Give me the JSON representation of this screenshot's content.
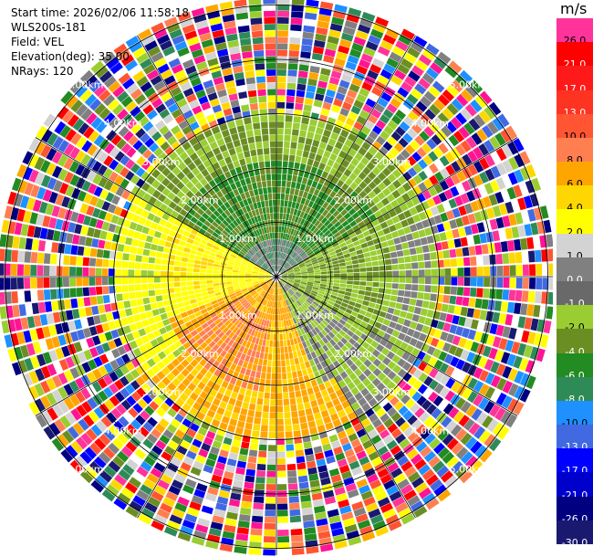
{
  "header": {
    "start_time": "Start time: 2026/02/06 11:58:18",
    "instrument": "WLS200s-181",
    "field": "Field: VEL",
    "elevation": "Elevation(deg): 35.00",
    "nrays": "NRays: 120"
  },
  "colorbar": {
    "unit": "m/s",
    "levels": [
      {
        "label": "26.0",
        "color": "#ff3399"
      },
      {
        "label": "21.0",
        "color": "#ff0000"
      },
      {
        "label": "17.0",
        "color": "#ff1a1a"
      },
      {
        "label": "13.0",
        "color": "#ff3322"
      },
      {
        "label": "10.0",
        "color": "#ff5533"
      },
      {
        "label": "8.0",
        "color": "#ff7f50"
      },
      {
        "label": "6.0",
        "color": "#ffa500"
      },
      {
        "label": "4.0",
        "color": "#ffd700"
      },
      {
        "label": "2.0",
        "color": "#ffff00"
      },
      {
        "label": "1.0",
        "color": "#d3d3d3"
      },
      {
        "label": "0.0",
        "color": "#808080"
      },
      {
        "label": "-1.0",
        "color": "#696969"
      },
      {
        "label": "-2.0",
        "color": "#9acd32"
      },
      {
        "label": "-4.0",
        "color": "#6b8e23"
      },
      {
        "label": "-6.0",
        "color": "#228b22"
      },
      {
        "label": "-8.0",
        "color": "#2e8b57"
      },
      {
        "label": "-10.0",
        "color": "#1e90ff"
      },
      {
        "label": "-13.0",
        "color": "#4169e1"
      },
      {
        "label": "-17.0",
        "color": "#0000ff"
      },
      {
        "label": "-21.0",
        "color": "#0000cd"
      },
      {
        "label": "-26.0",
        "color": "#000080"
      },
      {
        "label": "-30.0",
        "color": "#191970"
      }
    ]
  },
  "ppi": {
    "range_rings": [
      "1.00km",
      "2.00km",
      "3.00km",
      "4.00km",
      "5.00km"
    ],
    "noise_colors": [
      "#ff1493",
      "#ff0000",
      "#ffff00",
      "#ffd700",
      "#ffa500",
      "#228b22",
      "#2e8b57",
      "#6b8e23",
      "#9acd32",
      "#808080",
      "#d3d3d3",
      "#0000ff",
      "#000080",
      "#4169e1",
      "#1e90ff",
      "#ff7f50",
      "#ff3399",
      "#191970",
      "#ffffff",
      "#ff5533"
    ]
  }
}
